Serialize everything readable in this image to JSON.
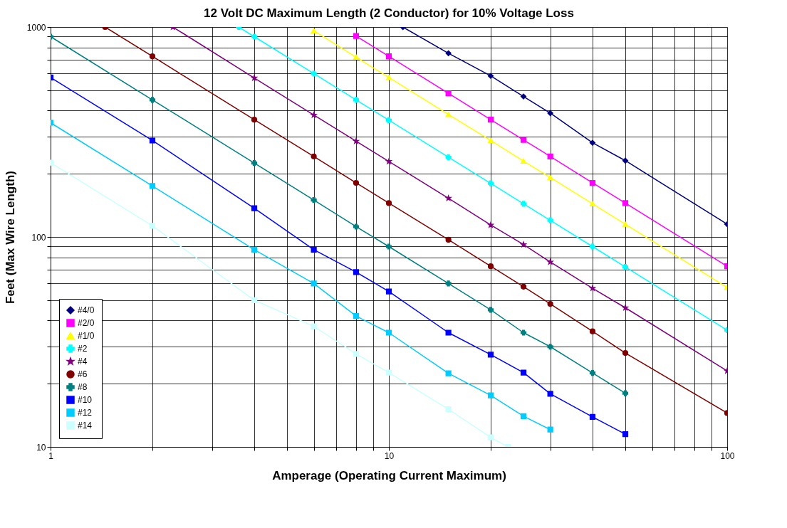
{
  "chart_data": {
    "type": "line",
    "title": "12 Volt DC Maximum Length (2 Conductor) for 10% Voltage Loss",
    "xlabel": "Amperage (Operating Current Maximum)",
    "ylabel": "Feet (Max Wire Length)",
    "log": "xy",
    "grid": true,
    "legend": "bottom left",
    "xlim": [
      1,
      100
    ],
    "ylim": [
      10,
      1000
    ],
    "xticks": [
      1,
      {
        "value": 2,
        "label": null
      },
      {
        "value": 3,
        "label": null
      },
      {
        "value": 4,
        "label": null
      },
      {
        "value": 5,
        "label": null
      },
      {
        "value": 6,
        "label": null
      },
      {
        "value": 7,
        "label": null
      },
      {
        "value": 8,
        "label": null
      },
      {
        "value": 9,
        "label": null
      },
      10,
      {
        "value": 20,
        "label": null
      },
      {
        "value": 30,
        "label": null
      },
      {
        "value": 40,
        "label": null
      },
      {
        "value": 50,
        "label": null
      },
      {
        "value": 60,
        "label": null
      },
      {
        "value": 70,
        "label": null
      },
      {
        "value": 80,
        "label": null
      },
      {
        "value": 90,
        "label": null
      },
      100
    ],
    "yticks": [
      10,
      {
        "value": 20,
        "label": null
      },
      {
        "value": 30,
        "label": null
      },
      {
        "value": 40,
        "label": null
      },
      {
        "value": 50,
        "label": null
      },
      {
        "value": 60,
        "label": null
      },
      {
        "value": 70,
        "label": null
      },
      {
        "value": 80,
        "label": null
      },
      {
        "value": 90,
        "label": null
      },
      100,
      {
        "value": 200,
        "label": null
      },
      {
        "value": 300,
        "label": null
      },
      {
        "value": 400,
        "label": null
      },
      {
        "value": 500,
        "label": null
      },
      {
        "value": 600,
        "label": null
      },
      {
        "value": 700,
        "label": null
      },
      {
        "value": 800,
        "label": null
      },
      {
        "value": 900,
        "label": null
      },
      1000
    ],
    "series": [
      {
        "name": "#4/0",
        "color": "#000080",
        "marker": "diamond",
        "x": [
          11,
          15,
          20,
          25,
          30,
          40,
          50,
          100
        ],
        "values": [
          1000,
          750,
          585,
          467,
          389,
          281,
          231,
          115
        ]
      },
      {
        "name": "#2/0",
        "color": "#ff00ff",
        "marker": "square",
        "x": [
          8,
          10,
          15,
          20,
          25,
          30,
          40,
          50,
          100
        ],
        "values": [
          906,
          725,
          483,
          362,
          290,
          242,
          181,
          145,
          72.5
        ]
      },
      {
        "name": "#1/0",
        "color": "#ffff00",
        "marker": "triangle",
        "x": [
          6,
          8,
          10,
          15,
          20,
          25,
          30,
          40,
          50,
          100
        ],
        "values": [
          960,
          719,
          575,
          383,
          288,
          230,
          192,
          144,
          115,
          57.5
        ]
      },
      {
        "name": "#2",
        "color": "#00ffff",
        "marker": "cross",
        "x": [
          3.6,
          4,
          6,
          8,
          10,
          15,
          20,
          25,
          30,
          40,
          50,
          100
        ],
        "values": [
          1000,
          900,
          600,
          450,
          360,
          240,
          180,
          144,
          120,
          90,
          72,
          36
        ]
      },
      {
        "name": "#4",
        "color": "#800080",
        "marker": "star",
        "x": [
          2.3,
          4,
          6,
          8,
          10,
          15,
          20,
          25,
          30,
          40,
          50,
          100
        ],
        "values": [
          1000,
          572,
          381,
          286,
          229,
          153,
          114,
          92,
          76,
          57,
          46,
          23
        ]
      },
      {
        "name": "#6",
        "color": "#800000",
        "marker": "circle",
        "x": [
          1.45,
          2,
          4,
          6,
          8,
          10,
          15,
          20,
          25,
          30,
          40,
          50,
          100
        ],
        "values": [
          1000,
          725,
          362,
          242,
          181,
          145,
          97,
          72.5,
          58,
          48,
          35.5,
          28,
          14.5
        ]
      },
      {
        "name": "#8",
        "color": "#008080",
        "marker": "cross",
        "x": [
          1,
          2,
          4,
          6,
          8,
          10,
          15,
          20,
          25,
          30,
          40,
          50
        ],
        "values": [
          900,
          450,
          225,
          150,
          112,
          90,
          60,
          45,
          35,
          30,
          22.5,
          18
        ]
      },
      {
        "name": "#10",
        "color": "#0000ff",
        "marker": "square",
        "x": [
          1,
          2,
          4,
          6,
          8,
          10,
          15,
          20,
          25,
          30,
          40,
          50
        ],
        "values": [
          575,
          288,
          137,
          87,
          68,
          55,
          35,
          27.5,
          22.6,
          17.9,
          13.9,
          11.5
        ]
      },
      {
        "name": "#12",
        "color": "#00ccff",
        "marker": "square",
        "x": [
          1,
          2,
          4,
          6,
          8,
          10,
          15,
          20,
          25,
          30
        ],
        "values": [
          350,
          175,
          87,
          60,
          42,
          35,
          22.4,
          17.6,
          14,
          12.1
        ]
      },
      {
        "name": "#14",
        "color": "#ccffff",
        "marker": "square",
        "x": [
          1,
          2,
          4,
          6,
          8,
          10,
          15,
          20,
          22.5
        ],
        "values": [
          226,
          113,
          50,
          37.5,
          27.7,
          22.6,
          15.1,
          11.1,
          10
        ]
      }
    ]
  }
}
